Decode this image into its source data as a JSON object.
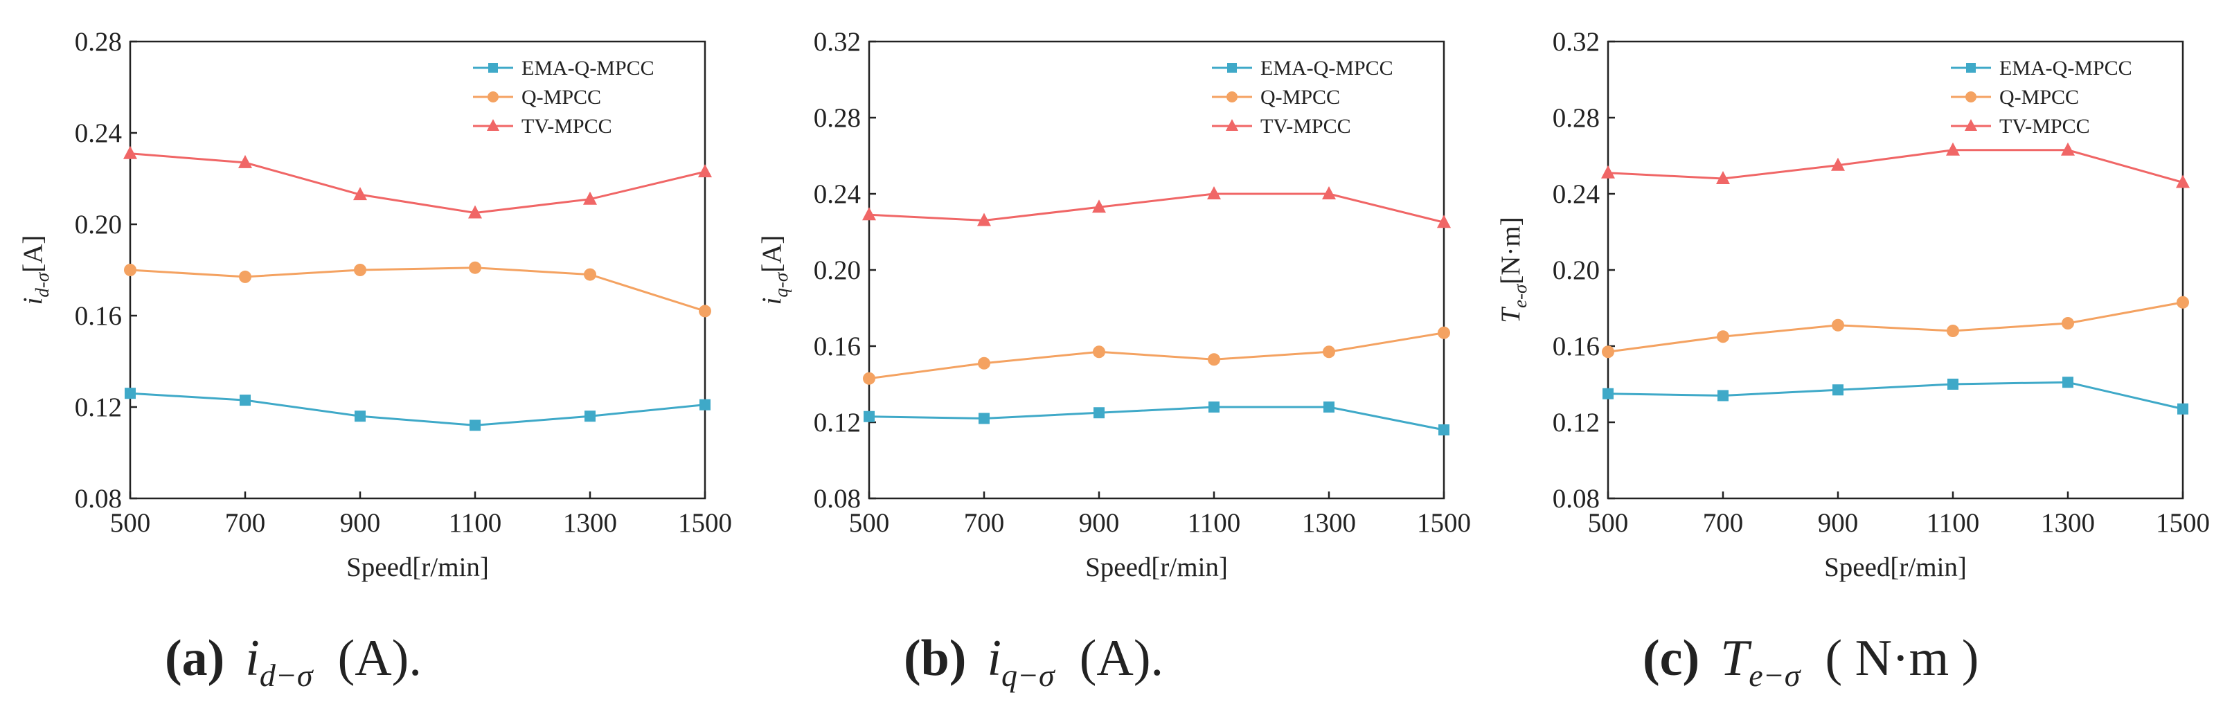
{
  "series_names": [
    "EMA-Q-MPCC",
    "Q-MPCC",
    "TV-MPCC"
  ],
  "colors": {
    "ema": "#3fa9c8",
    "q": "#f4a261",
    "tv": "#f06666",
    "axis": "#222222"
  },
  "chart_data": [
    {
      "type": "line",
      "xlabel": "Speed[r/min]",
      "ylabel": {
        "base": "i",
        "sub": "d-σ",
        "unit": "[A]"
      },
      "x": [
        500,
        700,
        900,
        1100,
        1300,
        1500
      ],
      "xlim": [
        500,
        1500
      ],
      "ylim": [
        0.08,
        0.28
      ],
      "yticks": [
        "0.08",
        "0.12",
        "0.16",
        "0.20",
        "0.24",
        "0.28"
      ],
      "xticks": [
        "500",
        "700",
        "900",
        "1100",
        "1300",
        "1500"
      ],
      "legend": "top-right",
      "series": [
        {
          "name": "EMA-Q-MPCC",
          "marker": "square",
          "values": [
            0.126,
            0.123,
            0.116,
            0.112,
            0.116,
            0.121
          ]
        },
        {
          "name": "Q-MPCC",
          "marker": "circle",
          "values": [
            0.18,
            0.177,
            0.18,
            0.181,
            0.178,
            0.162
          ]
        },
        {
          "name": "TV-MPCC",
          "marker": "triangle",
          "values": [
            0.231,
            0.227,
            0.213,
            0.205,
            0.211,
            0.223
          ]
        }
      ],
      "caption": {
        "label": "(a)",
        "symbol": "i",
        "sub": "d−σ",
        "unit": "(A)."
      }
    },
    {
      "type": "line",
      "xlabel": "Speed[r/min]",
      "ylabel": {
        "base": "i",
        "sub": "q-σ",
        "unit": "[A]"
      },
      "x": [
        500,
        700,
        900,
        1100,
        1300,
        1500
      ],
      "xlim": [
        500,
        1500
      ],
      "ylim": [
        0.08,
        0.32
      ],
      "yticks": [
        "0.08",
        "0.12",
        "0.16",
        "0.20",
        "0.24",
        "0.28",
        "0.32"
      ],
      "xticks": [
        "500",
        "700",
        "900",
        "1100",
        "1300",
        "1500"
      ],
      "legend": "top-right",
      "series": [
        {
          "name": "EMA-Q-MPCC",
          "marker": "square",
          "values": [
            0.123,
            0.122,
            0.125,
            0.128,
            0.128,
            0.116
          ]
        },
        {
          "name": "Q-MPCC",
          "marker": "circle",
          "values": [
            0.143,
            0.151,
            0.157,
            0.153,
            0.157,
            0.167
          ]
        },
        {
          "name": "TV-MPCC",
          "marker": "triangle",
          "values": [
            0.229,
            0.226,
            0.233,
            0.24,
            0.24,
            0.225
          ]
        }
      ],
      "caption": {
        "label": "(b)",
        "symbol": "i",
        "sub": "q−σ",
        "unit": "(A)."
      }
    },
    {
      "type": "line",
      "xlabel": "Speed[r/min]",
      "ylabel": {
        "base": "T",
        "sub": "e-σ",
        "unit": "[N·m]"
      },
      "x": [
        500,
        700,
        900,
        1100,
        1300,
        1500
      ],
      "xlim": [
        500,
        1500
      ],
      "ylim": [
        0.08,
        0.32
      ],
      "yticks": [
        "0.08",
        "0.12",
        "0.16",
        "0.20",
        "0.24",
        "0.28",
        "0.32"
      ],
      "xticks": [
        "500",
        "700",
        "900",
        "1100",
        "1300",
        "1500"
      ],
      "legend": "top-right",
      "series": [
        {
          "name": "EMA-Q-MPCC",
          "marker": "square",
          "values": [
            0.135,
            0.134,
            0.137,
            0.14,
            0.141,
            0.127
          ]
        },
        {
          "name": "Q-MPCC",
          "marker": "circle",
          "values": [
            0.157,
            0.165,
            0.171,
            0.168,
            0.172,
            0.183
          ]
        },
        {
          "name": "TV-MPCC",
          "marker": "triangle",
          "values": [
            0.251,
            0.248,
            0.255,
            0.263,
            0.263,
            0.246
          ]
        }
      ],
      "caption": {
        "label": "(c)",
        "symbol": "T",
        "sub": "e−σ",
        "unit": "( N·m )"
      }
    }
  ]
}
